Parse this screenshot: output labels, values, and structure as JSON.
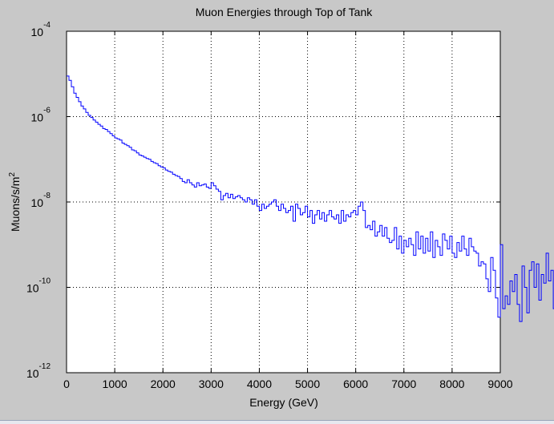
{
  "chart_data": {
    "type": "line",
    "title": "Muon Energies through Top of Tank",
    "xlabel": "Energy (GeV)",
    "ylabel_base": "Muons/s/m",
    "ylabel_exp": "2",
    "xlim": [
      0,
      9000
    ],
    "ylim": [
      1e-12,
      0.0001
    ],
    "yscale": "log",
    "grid": true,
    "style": "stairs",
    "line_color": "#0000ff",
    "x_ticks": [
      "0",
      "1000",
      "2000",
      "3000",
      "4000",
      "5000",
      "6000",
      "7000",
      "8000",
      "9000"
    ],
    "y_ticks": [
      {
        "base": "10",
        "exp": "-12"
      },
      {
        "base": "10",
        "exp": "-10"
      },
      {
        "base": "10",
        "exp": "-8"
      },
      {
        "base": "10",
        "exp": "-6"
      },
      {
        "base": "10",
        "exp": "-4"
      }
    ],
    "bin_width": 50,
    "series": [
      {
        "values_log10": [
          -5.05,
          -5.15,
          -5.3,
          -5.45,
          -5.55,
          -5.65,
          -5.75,
          -5.82,
          -5.9,
          -5.97,
          -6.02,
          -6.08,
          -6.13,
          -6.18,
          -6.22,
          -6.28,
          -6.3,
          -6.35,
          -6.4,
          -6.45,
          -6.5,
          -6.52,
          -6.55,
          -6.62,
          -6.65,
          -6.68,
          -6.72,
          -6.78,
          -6.8,
          -6.85,
          -6.9,
          -6.92,
          -6.95,
          -6.98,
          -7.0,
          -7.05,
          -7.08,
          -7.1,
          -7.15,
          -7.18,
          -7.2,
          -7.25,
          -7.28,
          -7.3,
          -7.35,
          -7.38,
          -7.4,
          -7.45,
          -7.52,
          -7.55,
          -7.48,
          -7.55,
          -7.6,
          -7.65,
          -7.55,
          -7.62,
          -7.6,
          -7.58,
          -7.65,
          -7.68,
          -7.55,
          -7.62,
          -7.7,
          -7.75,
          -7.95,
          -7.85,
          -7.8,
          -7.9,
          -7.82,
          -7.92,
          -7.88,
          -7.85,
          -7.9,
          -7.95,
          -8.0,
          -7.9,
          -7.95,
          -8.05,
          -7.95,
          -8.1,
          -8.2,
          -8.05,
          -8.15,
          -8.1,
          -8.05,
          -8.0,
          -7.95,
          -8.1,
          -8.2,
          -8.05,
          -8.15,
          -8.25,
          -8.2,
          -8.1,
          -8.45,
          -8.05,
          -8.15,
          -8.3,
          -8.25,
          -8.1,
          -8.35,
          -8.2,
          -8.5,
          -8.3,
          -8.2,
          -8.4,
          -8.25,
          -8.45,
          -8.3,
          -8.2,
          -8.35,
          -8.4,
          -8.3,
          -8.5,
          -8.2,
          -8.45,
          -8.3,
          -8.35,
          -8.25,
          -8.2,
          -8.3,
          -8.1,
          -8.0,
          -8.2,
          -8.6,
          -8.55,
          -8.65,
          -8.45,
          -8.8,
          -8.7,
          -8.55,
          -8.8,
          -8.6,
          -8.85,
          -8.95,
          -8.9,
          -8.6,
          -9.1,
          -8.8,
          -9.2,
          -8.9,
          -9.05,
          -8.85,
          -9.0,
          -9.25,
          -8.7,
          -9.1,
          -8.8,
          -9.2,
          -8.85,
          -9.15,
          -8.7,
          -9.3,
          -8.9,
          -9.05,
          -9.25,
          -8.75,
          -8.9,
          -9.1,
          -8.8,
          -9.2,
          -9.3,
          -8.95,
          -9.15,
          -8.8,
          -9.1,
          -9.25,
          -8.85,
          -9.05,
          -9.15,
          -9.2,
          -9.5,
          -9.4,
          -9.45,
          -9.8,
          -10.1,
          -9.3,
          -9.6,
          -10.25,
          -10.7,
          -9.0,
          -10.5,
          -10.2,
          -10.4,
          -9.85,
          -10.1,
          -9.7,
          -10.4,
          -10.8,
          -9.5,
          -10.0,
          -10.6,
          -9.6,
          -9.4,
          -10.0,
          -9.45,
          -10.3,
          -9.7,
          -9.9,
          -9.2,
          -9.85,
          -9.6,
          -10.5,
          -9.8,
          -10.1,
          -9.4,
          -10.4,
          -9.7,
          -10.0,
          -9.5,
          -9.15,
          -9.8,
          -9.4,
          -9.05,
          -9.2,
          -10.3,
          -9.7,
          -10.2,
          -10.5,
          -10.6,
          -10.7,
          -10.5,
          -10.8,
          -10.4,
          -10.5,
          -10.9,
          -10.6,
          -10.3,
          -11.0,
          -10.4,
          -9.9,
          -10.3,
          -10.0,
          -9.7,
          -10.1,
          -9.85,
          -10.2,
          -9.5,
          -9.8,
          -10.3,
          -9.2,
          -9.6,
          -9.0,
          -9.4,
          -9.8,
          -9.2,
          -9.5,
          -9.6,
          -9.3,
          -9.8,
          -9.7,
          -9.6,
          -9.3,
          -9.05,
          -9.2,
          -9.5,
          -9.4,
          -9.1,
          -9.3,
          -9.2,
          -9.6,
          -10.0,
          -9.8,
          -9.9,
          -9.6,
          -9.4,
          -9.3,
          -9.7,
          -10.0,
          -9.5,
          -9.2,
          -9.6,
          -10.0,
          -9.8,
          -9.3,
          -9.6,
          -9.0,
          -9.2,
          -9.4,
          -9.6,
          -9.2,
          -9.4,
          -9.1,
          -9.3,
          -9.05,
          -9.2,
          -9.6,
          -9.4,
          -9.7,
          -9.3,
          -9.5,
          -9.8,
          -9.4,
          -9.6,
          -9.3,
          -9.7,
          -9.5,
          -9.6,
          -9.8,
          -9.5,
          -9.7,
          -9.4,
          -9.8,
          -9.6,
          -9.7,
          -9.5,
          -9.8,
          -9.4,
          -9.9,
          -9.6,
          -9.8,
          -10.0,
          -9.6,
          -10.1,
          -9.8,
          -10.4,
          -9.9,
          -10.2,
          -9.7,
          -10.0,
          -9.6,
          -10.1,
          -9.8,
          -10.3,
          -9.9,
          -9.7,
          -10.0,
          -9.6,
          -9.9,
          -10.2,
          -9.8,
          -10.0,
          -10.3,
          -9.9,
          -10.1,
          -9.6,
          -10.0,
          -10.2,
          -9.8,
          -10.1,
          -9.7,
          -9.9,
          -10.0,
          -9.8,
          -10.1,
          -9.9,
          -10.0,
          -10.2,
          -9.8,
          -10.0,
          -9.9,
          -10.1,
          -9.8,
          -10.0,
          -10.2,
          -9.9,
          -10.1,
          -9.8,
          -10.0,
          -9.9
        ]
      }
    ]
  }
}
